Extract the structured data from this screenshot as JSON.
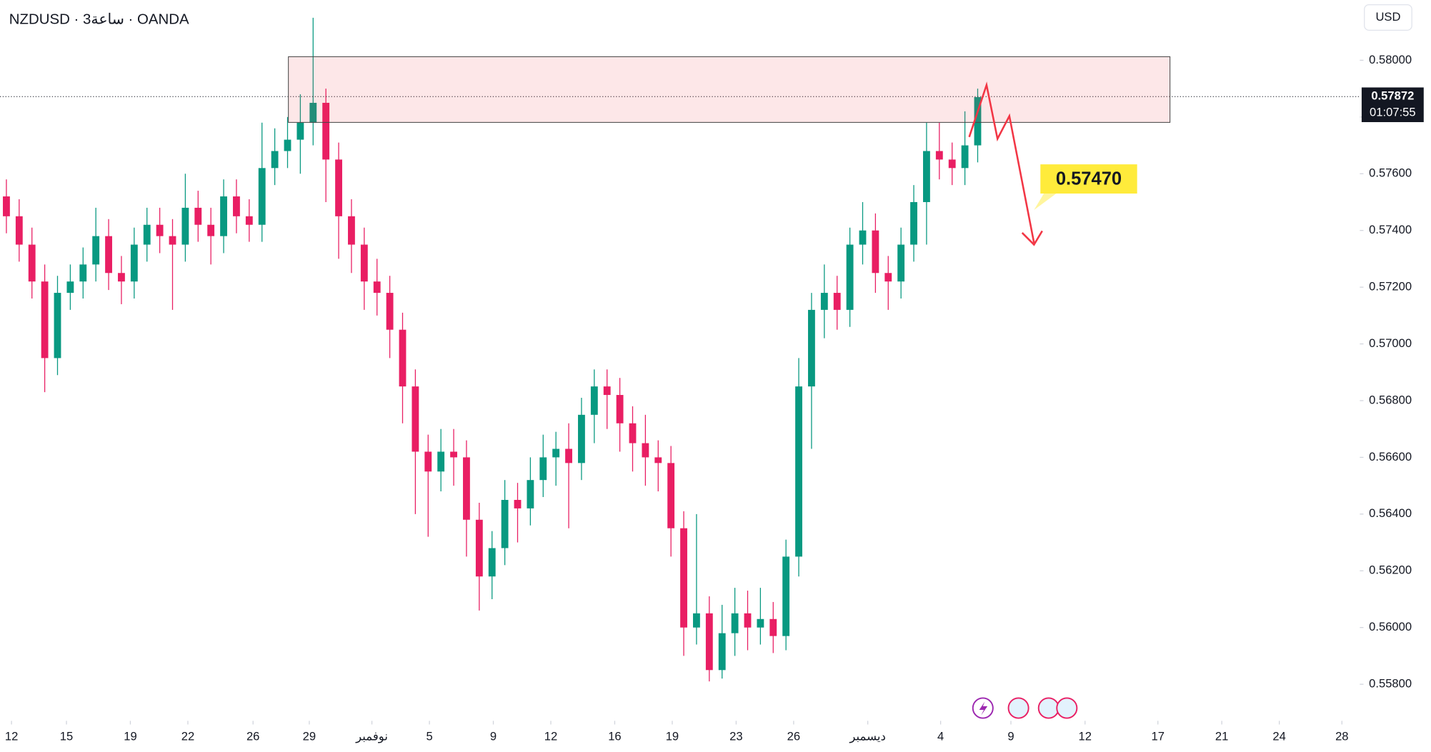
{
  "chart_data": {
    "type": "candlestick",
    "title": "NZDUSD · 3ساعة · OANDA",
    "currency": "USD",
    "open": [
      0.5752,
      0.5745,
      0.5735,
      0.5722,
      0.5695,
      0.5718,
      0.5722,
      0.5728,
      0.5738,
      0.5725,
      0.5722,
      0.5735,
      0.5742,
      0.5738,
      0.5735,
      0.5748,
      0.5742,
      0.5738,
      0.5752,
      0.5745,
      0.5742,
      0.5762,
      0.5768,
      0.5772,
      0.5778,
      0.5785,
      0.5765,
      0.5745,
      0.5735,
      0.5722,
      0.5718,
      0.5705,
      0.5685,
      0.5662,
      0.5655,
      0.5662,
      0.566,
      0.5638,
      0.5618,
      0.5628,
      0.5645,
      0.5642,
      0.5652,
      0.566,
      0.5663,
      0.5658,
      0.5675,
      0.5685,
      0.5682,
      0.5672,
      0.5665,
      0.566,
      0.5658,
      0.5635,
      0.56,
      0.5605,
      0.5585,
      0.5598,
      0.5605,
      0.56,
      0.5603,
      0.5597,
      0.5625,
      0.5685,
      0.5712,
      0.5718,
      0.5712,
      0.5735,
      0.574,
      0.5725,
      0.5722,
      0.5735,
      0.575,
      0.5768,
      0.5765,
      0.5762,
      0.577
    ],
    "high": [
      0.5758,
      0.5751,
      0.5741,
      0.5728,
      0.5724,
      0.5728,
      0.5734,
      0.5748,
      0.5744,
      0.5731,
      0.5741,
      0.5748,
      0.5748,
      0.5744,
      0.576,
      0.5754,
      0.5748,
      0.5758,
      0.5758,
      0.5751,
      0.5778,
      0.5776,
      0.578,
      0.5788,
      0.5815,
      0.579,
      0.5771,
      0.5751,
      0.5741,
      0.573,
      0.5724,
      0.5711,
      0.5691,
      0.5668,
      0.567,
      0.567,
      0.5666,
      0.5644,
      0.5634,
      0.5652,
      0.5651,
      0.566,
      0.5668,
      0.5669,
      0.5672,
      0.5681,
      0.5691,
      0.5691,
      0.5688,
      0.5678,
      0.5675,
      0.5666,
      0.5664,
      0.5641,
      0.564,
      0.5611,
      0.5608,
      0.5614,
      0.5613,
      0.5614,
      0.5609,
      0.5631,
      0.5695,
      0.5718,
      0.5728,
      0.5724,
      0.5741,
      0.575,
      0.5746,
      0.5731,
      0.5741,
      0.5756,
      0.5778,
      0.5778,
      0.5771,
      0.5782,
      0.579
    ],
    "low": [
      0.5739,
      0.5729,
      0.5716,
      0.5683,
      0.5689,
      0.5712,
      0.5716,
      0.5722,
      0.5719,
      0.5714,
      0.5716,
      0.5729,
      0.5732,
      0.5712,
      0.5729,
      0.5736,
      0.5728,
      0.5732,
      0.5739,
      0.5736,
      0.5736,
      0.5756,
      0.5762,
      0.576,
      0.577,
      0.575,
      0.573,
      0.5725,
      0.5712,
      0.571,
      0.5695,
      0.5672,
      0.564,
      0.5632,
      0.5648,
      0.565,
      0.5625,
      0.5606,
      0.561,
      0.5622,
      0.563,
      0.5636,
      0.5646,
      0.565,
      0.5635,
      0.5652,
      0.5665,
      0.567,
      0.5662,
      0.5655,
      0.565,
      0.5648,
      0.5625,
      0.559,
      0.5594,
      0.5581,
      0.5582,
      0.559,
      0.5592,
      0.5594,
      0.5591,
      0.5592,
      0.5618,
      0.5663,
      0.5702,
      0.5705,
      0.5706,
      0.5728,
      0.5718,
      0.5712,
      0.5716,
      0.5729,
      0.5735,
      0.5758,
      0.5756,
      0.5756,
      0.5764
    ],
    "close": [
      0.5745,
      0.5735,
      0.5722,
      0.5695,
      0.5718,
      0.5722,
      0.5728,
      0.5738,
      0.5725,
      0.5722,
      0.5735,
      0.5742,
      0.5738,
      0.5735,
      0.5748,
      0.5742,
      0.5738,
      0.5752,
      0.5745,
      0.5742,
      0.5762,
      0.5768,
      0.5772,
      0.5778,
      0.5785,
      0.5765,
      0.5745,
      0.5735,
      0.5722,
      0.5718,
      0.5705,
      0.5685,
      0.5662,
      0.5655,
      0.5662,
      0.566,
      0.5638,
      0.5618,
      0.5628,
      0.5645,
      0.5642,
      0.5652,
      0.566,
      0.5663,
      0.5658,
      0.5675,
      0.5685,
      0.5682,
      0.5672,
      0.5665,
      0.566,
      0.5658,
      0.5635,
      0.56,
      0.5605,
      0.5585,
      0.5598,
      0.5605,
      0.56,
      0.5603,
      0.5597,
      0.5625,
      0.5685,
      0.5712,
      0.5718,
      0.5712,
      0.5735,
      0.574,
      0.5725,
      0.5722,
      0.5735,
      0.575,
      0.5768,
      0.5765,
      0.5762,
      0.577,
      0.5787
    ],
    "up_color": "#089981",
    "down_color": "#e91e63",
    "xlim": [
      -0.5,
      105.9
    ],
    "xticks": [
      {
        "value": 0.4,
        "label": "12"
      },
      {
        "value": 4.7,
        "label": "15"
      },
      {
        "value": 9.7,
        "label": "19"
      },
      {
        "value": 14.2,
        "label": "22"
      },
      {
        "value": 19.3,
        "label": "26"
      },
      {
        "value": 23.7,
        "label": "29"
      },
      {
        "value": 28.6,
        "label": "نوفمبر"
      },
      {
        "value": 33.1,
        "label": "5"
      },
      {
        "value": 38.1,
        "label": "9"
      },
      {
        "value": 42.6,
        "label": "12"
      },
      {
        "value": 47.6,
        "label": "16"
      },
      {
        "value": 52.1,
        "label": "19"
      },
      {
        "value": 57.1,
        "label": "23"
      },
      {
        "value": 61.6,
        "label": "26"
      },
      {
        "value": 67.4,
        "label": "ديسمبر"
      },
      {
        "value": 73.1,
        "label": "4"
      },
      {
        "value": 78.6,
        "label": "9"
      },
      {
        "value": 84.4,
        "label": "12"
      },
      {
        "value": 90.1,
        "label": "17"
      },
      {
        "value": 95.1,
        "label": "21"
      },
      {
        "value": 99.6,
        "label": "24"
      },
      {
        "value": 104.5,
        "label": "28"
      }
    ],
    "ylim": [
      0.55671,
      0.58212
    ],
    "yticks": [
      {
        "value": 0.558,
        "label": "0.55800"
      },
      {
        "value": 0.56,
        "label": "0.56000"
      },
      {
        "value": 0.562,
        "label": "0.56200"
      },
      {
        "value": 0.564,
        "label": "0.56400"
      },
      {
        "value": 0.566,
        "label": "0.56600"
      },
      {
        "value": 0.568,
        "label": "0.56800"
      },
      {
        "value": 0.57,
        "label": "0.57000"
      },
      {
        "value": 0.572,
        "label": "0.57200"
      },
      {
        "value": 0.574,
        "label": "0.57400"
      },
      {
        "value": 0.576,
        "label": "0.57600"
      },
      {
        "value": 0.578,
        "label": "0.57800"
      },
      {
        "value": 0.58,
        "label": "0.58000"
      }
    ],
    "grid": false,
    "last_price": {
      "value": 0.57872,
      "label": "0.57872"
    },
    "countdown": "01:07:55",
    "target_label": "0.57470"
  }
}
